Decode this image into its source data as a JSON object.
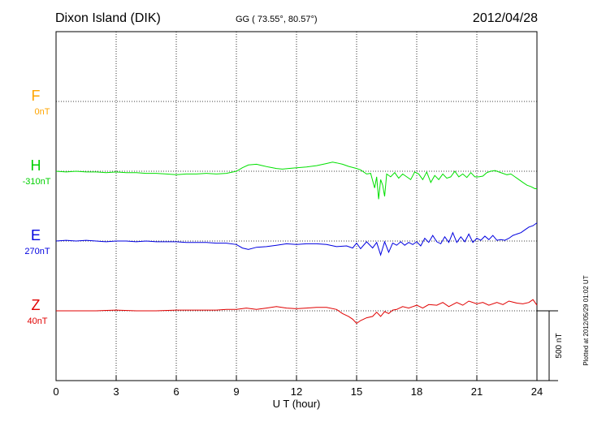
{
  "header": {
    "station": "Dixon Island (DIK)",
    "coords": "GG ( 73.55°,  80.57°)",
    "date": "2012/04/28"
  },
  "plotted_note": "Plotted at 2012/05/29 01:02 UT",
  "scale_bar_label": "500 nT",
  "colors": {
    "F": "#ffa500",
    "H": "#00e000",
    "E": "#0000e0",
    "Z": "#e00000",
    "grid": "#000000"
  },
  "chart_data": {
    "type": "line",
    "xlabel": "U T (hour)",
    "xlim": [
      0,
      24
    ],
    "xticks": [
      "0",
      "3",
      "6",
      "9",
      "12",
      "15",
      "18",
      "21",
      "24"
    ],
    "scale_nT_per_bar": 500,
    "series": [
      {
        "name": "F",
        "baseline_label": "0nT",
        "x": [],
        "y": []
      },
      {
        "name": "H",
        "baseline_label": "-310nT",
        "x": [
          0,
          0.5,
          1,
          1.5,
          2,
          2.5,
          3,
          3.5,
          4,
          4.5,
          5,
          5.5,
          6,
          6.5,
          7,
          7.5,
          8,
          8.5,
          9,
          9.3,
          9.6,
          10,
          10.3,
          10.6,
          11,
          11.3,
          11.6,
          12,
          12.5,
          13,
          13.5,
          13.8,
          14,
          14.3,
          14.6,
          15,
          15.2,
          15.5,
          15.7,
          15.9,
          16.0,
          16.1,
          16.2,
          16.3,
          16.4,
          16.5,
          16.7,
          16.9,
          17.1,
          17.3,
          17.5,
          17.7,
          17.9,
          18.1,
          18.3,
          18.5,
          18.7,
          18.9,
          19.1,
          19.3,
          19.5,
          19.7,
          19.9,
          20.1,
          20.3,
          20.5,
          20.7,
          20.9,
          21.1,
          21.3,
          21.5,
          21.7,
          21.9,
          22.1,
          22.3,
          22.5,
          22.7,
          22.9,
          23.1,
          23.3,
          23.5,
          23.7,
          23.9,
          24
        ],
        "y": [
          0,
          -5,
          0,
          -5,
          -5,
          -10,
          -5,
          -10,
          -10,
          -15,
          -15,
          -20,
          -25,
          -20,
          -20,
          -15,
          -20,
          -15,
          0,
          25,
          45,
          50,
          40,
          30,
          20,
          15,
          20,
          25,
          30,
          40,
          55,
          65,
          60,
          50,
          35,
          20,
          10,
          -20,
          -15,
          -120,
          -40,
          -200,
          -60,
          -100,
          -180,
          -20,
          -40,
          -10,
          -50,
          -20,
          -40,
          -60,
          -5,
          -20,
          -60,
          -5,
          -80,
          -30,
          -60,
          -20,
          -50,
          -40,
          0,
          -40,
          -20,
          -45,
          -10,
          -40,
          -40,
          -35,
          -10,
          0,
          5,
          -5,
          -15,
          -25,
          -20,
          -40,
          -60,
          -80,
          -100,
          -110,
          -125,
          -125
        ]
      },
      {
        "name": "E",
        "baseline_label": "270nT",
        "x": [
          0,
          0.5,
          1,
          1.5,
          2,
          2.5,
          3,
          3.5,
          4,
          4.5,
          5,
          5.5,
          6,
          6.5,
          7,
          7.5,
          8,
          8.5,
          9,
          9.3,
          9.6,
          10,
          10.5,
          11,
          11.5,
          12,
          12.5,
          13,
          13.5,
          14,
          14.5,
          14.8,
          15,
          15.2,
          15.5,
          15.8,
          16.0,
          16.2,
          16.4,
          16.6,
          16.8,
          17,
          17.2,
          17.4,
          17.6,
          17.8,
          18,
          18.2,
          18.4,
          18.6,
          18.8,
          19,
          19.2,
          19.4,
          19.6,
          19.8,
          20,
          20.2,
          20.4,
          20.6,
          20.8,
          21,
          21.2,
          21.4,
          21.6,
          21.8,
          22,
          22.2,
          22.4,
          22.6,
          22.8,
          23,
          23.2,
          23.4,
          23.6,
          23.8,
          24
        ],
        "y": [
          0,
          5,
          0,
          5,
          0,
          -5,
          0,
          0,
          -5,
          0,
          -5,
          -5,
          -5,
          -10,
          -10,
          -10,
          -15,
          -15,
          -25,
          -50,
          -60,
          -45,
          -40,
          -30,
          -20,
          -25,
          -20,
          -20,
          -25,
          -40,
          -35,
          -50,
          -15,
          -55,
          -5,
          -50,
          -10,
          -100,
          -5,
          -80,
          -15,
          -30,
          -5,
          -30,
          -10,
          -25,
          -5,
          -35,
          20,
          -10,
          40,
          -5,
          -20,
          30,
          -10,
          60,
          -10,
          30,
          -5,
          50,
          -10,
          20,
          5,
          35,
          10,
          40,
          5,
          10,
          5,
          20,
          40,
          50,
          60,
          80,
          100,
          110,
          130
        ]
      },
      {
        "name": "Z",
        "baseline_label": "40nT",
        "x": [
          0,
          1,
          2,
          3,
          4,
          5,
          6,
          7,
          8,
          8.5,
          9,
          9.5,
          10,
          10.5,
          11,
          11.5,
          12,
          12.5,
          13,
          13.5,
          14,
          14.3,
          14.6,
          14.8,
          15,
          15.2,
          15.5,
          15.8,
          16,
          16.2,
          16.4,
          16.6,
          16.8,
          17,
          17.3,
          17.6,
          18,
          18.3,
          18.6,
          19,
          19.3,
          19.6,
          20,
          20.3,
          20.6,
          21,
          21.3,
          21.6,
          22,
          22.3,
          22.6,
          23,
          23.3,
          23.6,
          23.8,
          24
        ],
        "y": [
          0,
          0,
          0,
          5,
          0,
          0,
          5,
          5,
          5,
          10,
          10,
          20,
          10,
          20,
          30,
          20,
          15,
          20,
          25,
          25,
          10,
          -20,
          -40,
          -60,
          -90,
          -70,
          -50,
          -40,
          -10,
          -40,
          -5,
          -20,
          5,
          10,
          30,
          20,
          40,
          20,
          45,
          40,
          60,
          30,
          60,
          40,
          70,
          50,
          60,
          40,
          60,
          45,
          70,
          55,
          50,
          60,
          80,
          40
        ]
      }
    ]
  }
}
